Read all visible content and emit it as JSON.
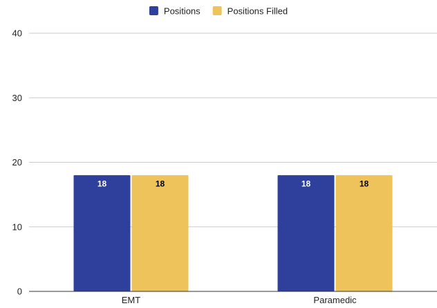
{
  "chart_data": {
    "type": "bar",
    "categories": [
      "EMT",
      "Paramedic"
    ],
    "series": [
      {
        "name": "Positions",
        "values": [
          18,
          18
        ],
        "color": "#2e3f9c",
        "label_color": "#ffffff"
      },
      {
        "name": "Positions Filled",
        "values": [
          18,
          18
        ],
        "color": "#eec35c",
        "label_color": "#000000"
      }
    ],
    "title": "",
    "xlabel": "",
    "ylabel": "",
    "ylim": [
      0,
      40
    ],
    "yticks": [
      0,
      10,
      20,
      30,
      40
    ],
    "grid": true,
    "legend": "top-center",
    "data_labels": true,
    "gridline_color": "#cccccc",
    "axis_color": "#333333"
  }
}
